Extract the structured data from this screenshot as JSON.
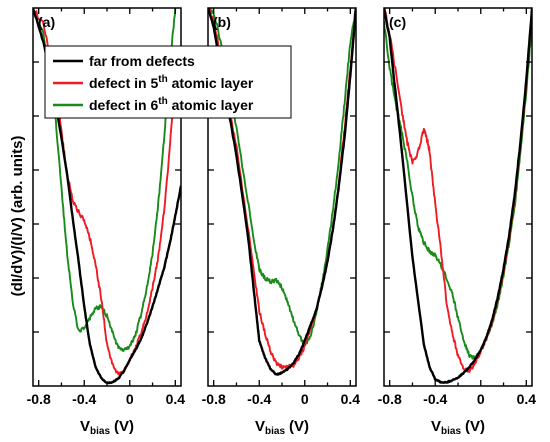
{
  "chart_data": {
    "type": "line",
    "ylabel": "(dI/dV)/(I/V) (arb. units)",
    "xlabel": "V",
    "xlabel_subscript": "bias",
    "xlabel_unit": "(V)",
    "xlim": [
      -0.85,
      0.45
    ],
    "ylim": [
      0,
      10
    ],
    "xticks": [
      "-0.8",
      "-0.4",
      "0",
      "0.4"
    ],
    "xtick_values": [
      -0.8,
      -0.4,
      0,
      0.4
    ],
    "grid": false,
    "legend": {
      "placement": "top-left",
      "entries": [
        {
          "main": "far from defects",
          "sup": "",
          "tail": ""
        },
        {
          "main": "defect in 5",
          "sup": "th",
          "tail": " atomic layer"
        },
        {
          "main": "defect in 6",
          "sup": "th",
          "tail": " atomic layer"
        }
      ]
    },
    "colors": {
      "far": "#000000",
      "d5": "#ee1c24",
      "d6": "#1a8a1a"
    },
    "panels": [
      {
        "label": "(a)",
        "series": [
          {
            "key": "far",
            "x": [
              -0.85,
              -0.75,
              -0.65,
              -0.55,
              -0.5,
              -0.45,
              -0.4,
              -0.35,
              -0.3,
              -0.25,
              -0.2,
              -0.15,
              -0.1,
              -0.05,
              0,
              0.05,
              0.1,
              0.15,
              0.2,
              0.25,
              0.3,
              0.35,
              0.4,
              0.45
            ],
            "y": [
              10,
              9.0,
              7.5,
              5.6,
              4.4,
              3.3,
              2.1,
              1.1,
              0.5,
              0.2,
              0.08,
              0.1,
              0.2,
              0.4,
              0.7,
              0.95,
              1.25,
              1.65,
              2.1,
              2.6,
              3.1,
              3.75,
              4.5,
              5.3
            ]
          },
          {
            "key": "d5",
            "x": [
              -0.85,
              -0.75,
              -0.65,
              -0.6,
              -0.55,
              -0.5,
              -0.45,
              -0.4,
              -0.35,
              -0.3,
              -0.25,
              -0.2,
              -0.15,
              -0.1,
              -0.05,
              0,
              0.05,
              0.1,
              0.15,
              0.2,
              0.25,
              0.3,
              0.35,
              0.4
            ],
            "y": [
              10,
              9.5,
              8.0,
              6.7,
              5.6,
              4.9,
              4.6,
              4.4,
              3.9,
              3.2,
              2.3,
              1.1,
              0.55,
              0.3,
              0.4,
              0.7,
              1.0,
              1.4,
              1.9,
              2.6,
              3.4,
              4.6,
              6.2,
              8.4
            ]
          },
          {
            "key": "d6",
            "x": [
              -0.85,
              -0.75,
              -0.65,
              -0.6,
              -0.55,
              -0.5,
              -0.45,
              -0.4,
              -0.35,
              -0.3,
              -0.25,
              -0.2,
              -0.15,
              -0.1,
              -0.05,
              0,
              0.05,
              0.1,
              0.15,
              0.2,
              0.25,
              0.3,
              0.35,
              0.4
            ],
            "y": [
              10,
              9.2,
              7.0,
              5.2,
              3.5,
              2.2,
              1.45,
              1.55,
              1.8,
              2.05,
              2.1,
              1.85,
              1.4,
              1.0,
              0.95,
              1.05,
              1.35,
              1.9,
              2.6,
              3.5,
              4.8,
              6.5,
              8.5,
              10
            ]
          }
        ]
      },
      {
        "label": "(b)",
        "series": [
          {
            "key": "far",
            "x": [
              -0.85,
              -0.8,
              -0.7,
              -0.6,
              -0.5,
              -0.45,
              -0.4,
              -0.35,
              -0.3,
              -0.25,
              -0.2,
              -0.15,
              -0.1,
              -0.05,
              0,
              0.05,
              0.1,
              0.15,
              0.2,
              0.25,
              0.3,
              0.35,
              0.4,
              0.45
            ],
            "y": [
              10,
              9.5,
              7.8,
              6.1,
              4.0,
              2.6,
              1.2,
              0.75,
              0.45,
              0.3,
              0.35,
              0.45,
              0.6,
              0.85,
              1.2,
              1.6,
              2.0,
              2.6,
              3.3,
              4.2,
              5.3,
              6.6,
              8.2,
              10
            ]
          },
          {
            "key": "d5",
            "x": [
              -0.85,
              -0.8,
              -0.7,
              -0.6,
              -0.5,
              -0.45,
              -0.4,
              -0.35,
              -0.3,
              -0.25,
              -0.2,
              -0.15,
              -0.1,
              -0.05,
              0,
              0.05,
              0.1,
              0.15,
              0.2,
              0.25,
              0.3,
              0.35,
              0.4,
              0.45
            ],
            "y": [
              10,
              9.7,
              8.0,
              6.3,
              4.2,
              3.1,
              2.0,
              1.4,
              0.9,
              0.6,
              0.5,
              0.5,
              0.55,
              0.75,
              1.05,
              1.5,
              2.0,
              2.6,
              3.3,
              4.2,
              5.4,
              6.8,
              8.4,
              10
            ]
          },
          {
            "key": "d6",
            "x": [
              -0.85,
              -0.8,
              -0.7,
              -0.6,
              -0.5,
              -0.45,
              -0.4,
              -0.35,
              -0.3,
              -0.25,
              -0.2,
              -0.15,
              -0.1,
              -0.05,
              0,
              0.05,
              0.1,
              0.15,
              0.2,
              0.25,
              0.3,
              0.35,
              0.4,
              0.45
            ],
            "y": [
              10,
              9.9,
              8.6,
              6.8,
              4.9,
              3.9,
              3.1,
              2.85,
              2.75,
              2.8,
              2.6,
              2.2,
              1.75,
              1.35,
              1.05,
              1.3,
              1.9,
              2.7,
              3.6,
              4.7,
              6.0,
              7.5,
              9.1,
              10
            ]
          }
        ]
      },
      {
        "label": "(c)",
        "series": [
          {
            "key": "far",
            "x": [
              -0.85,
              -0.8,
              -0.7,
              -0.6,
              -0.5,
              -0.45,
              -0.4,
              -0.35,
              -0.3,
              -0.25,
              -0.2,
              -0.15,
              -0.1,
              -0.05,
              0,
              0.05,
              0.1,
              0.15,
              0.2,
              0.25,
              0.3,
              0.35,
              0.4,
              0.45
            ],
            "y": [
              10,
              9.2,
              6.4,
              3.4,
              1.1,
              0.5,
              0.18,
              0.1,
              0.1,
              0.15,
              0.22,
              0.35,
              0.5,
              0.7,
              0.95,
              1.3,
              1.75,
              2.35,
              3.1,
              4.0,
              5.1,
              6.5,
              8.1,
              10
            ]
          },
          {
            "key": "d5",
            "x": [
              -0.85,
              -0.8,
              -0.7,
              -0.65,
              -0.6,
              -0.55,
              -0.5,
              -0.47,
              -0.45,
              -0.4,
              -0.35,
              -0.3,
              -0.25,
              -0.2,
              -0.15,
              -0.1,
              -0.05,
              0,
              0.05,
              0.1,
              0.15,
              0.2,
              0.25,
              0.3,
              0.35,
              0.4,
              0.45
            ],
            "y": [
              10,
              9.3,
              7.4,
              6.5,
              5.9,
              6.2,
              6.8,
              6.5,
              6.2,
              4.8,
              3.6,
              2.2,
              1.4,
              0.8,
              0.45,
              0.4,
              0.6,
              0.9,
              1.25,
              1.7,
              2.3,
              3.0,
              3.9,
              5.0,
              6.4,
              8.0,
              10
            ]
          },
          {
            "key": "d6",
            "x": [
              -0.85,
              -0.8,
              -0.75,
              -0.7,
              -0.65,
              -0.6,
              -0.55,
              -0.5,
              -0.45,
              -0.4,
              -0.35,
              -0.3,
              -0.25,
              -0.2,
              -0.15,
              -0.1,
              -0.05,
              0,
              0.05,
              0.1,
              0.15,
              0.2,
              0.25,
              0.3,
              0.35,
              0.4,
              0.45
            ],
            "y": [
              9.6,
              8.4,
              7.5,
              6.8,
              6.0,
              5.0,
              4.2,
              3.8,
              3.55,
              3.45,
              3.2,
              2.85,
              2.45,
              1.8,
              1.2,
              0.8,
              0.75,
              0.9,
              1.25,
              1.65,
              2.2,
              2.9,
              3.8,
              4.8,
              6.2,
              7.8,
              9.6
            ]
          }
        ]
      }
    ]
  }
}
